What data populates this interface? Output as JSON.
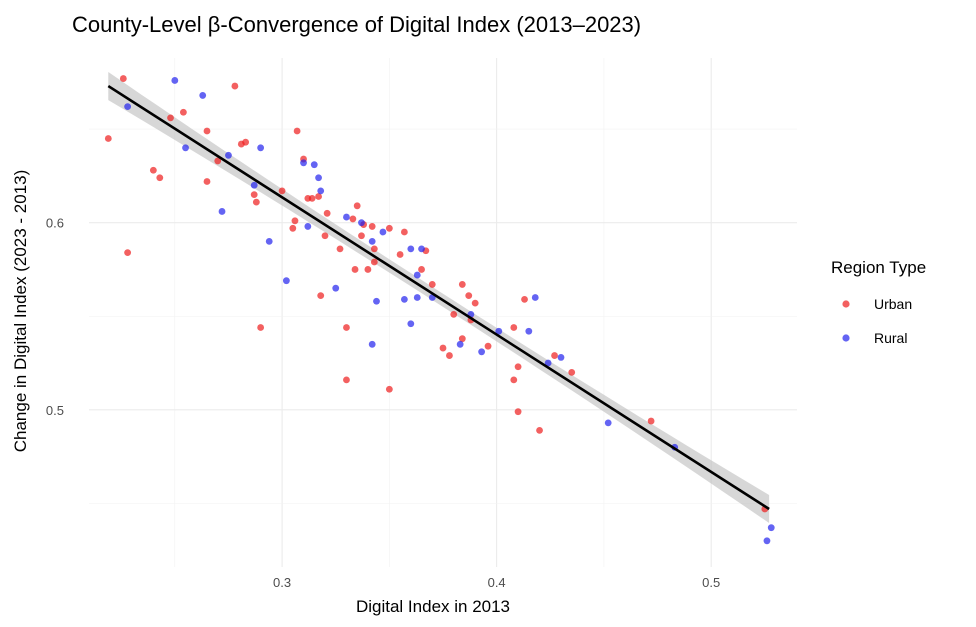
{
  "colors": {
    "urban": "#ee1c1c",
    "rural": "#2222ee",
    "fit_line": "#000000",
    "ci_band": "#bdbdbd",
    "grid": "#ebebeb"
  },
  "chart_data": {
    "type": "scatter",
    "title": "County-Level β-Convergence of Digital Index (2013–2023)",
    "xlabel": "Digital Index in 2013",
    "ylabel": "Change in Digital Index (2023 - 2013)",
    "xlim": [
      0.21,
      0.54
    ],
    "ylim": [
      0.416,
      0.688
    ],
    "xticks": [
      0.3,
      0.4,
      0.5
    ],
    "yticks": [
      0.5,
      0.6
    ],
    "xtick_labels": [
      "0.3",
      "0.4",
      "0.5"
    ],
    "ytick_labels": [
      "0.5",
      "0.6"
    ],
    "grid": true,
    "legend": {
      "title": "Region Type",
      "position": "right",
      "entries": [
        "Urban",
        "Rural"
      ]
    },
    "fit": {
      "type": "linear",
      "x": [
        0.219,
        0.527
      ],
      "y": [
        0.673,
        0.447
      ],
      "ci_half_width": [
        0.0075,
        0.0035,
        0.0075
      ]
    },
    "series": [
      {
        "name": "Urban",
        "color": "#ee1c1c",
        "points": [
          [
            0.219,
            0.645
          ],
          [
            0.226,
            0.677
          ],
          [
            0.228,
            0.584
          ],
          [
            0.24,
            0.628
          ],
          [
            0.243,
            0.624
          ],
          [
            0.248,
            0.656
          ],
          [
            0.254,
            0.659
          ],
          [
            0.265,
            0.622
          ],
          [
            0.265,
            0.649
          ],
          [
            0.27,
            0.633
          ],
          [
            0.278,
            0.673
          ],
          [
            0.281,
            0.642
          ],
          [
            0.283,
            0.643
          ],
          [
            0.287,
            0.615
          ],
          [
            0.288,
            0.611
          ],
          [
            0.29,
            0.544
          ],
          [
            0.3,
            0.617
          ],
          [
            0.305,
            0.597
          ],
          [
            0.306,
            0.601
          ],
          [
            0.307,
            0.649
          ],
          [
            0.31,
            0.634
          ],
          [
            0.312,
            0.613
          ],
          [
            0.314,
            0.613
          ],
          [
            0.317,
            0.614
          ],
          [
            0.318,
            0.561
          ],
          [
            0.32,
            0.593
          ],
          [
            0.321,
            0.605
          ],
          [
            0.327,
            0.586
          ],
          [
            0.33,
            0.544
          ],
          [
            0.33,
            0.516
          ],
          [
            0.333,
            0.602
          ],
          [
            0.334,
            0.575
          ],
          [
            0.335,
            0.609
          ],
          [
            0.337,
            0.593
          ],
          [
            0.338,
            0.599
          ],
          [
            0.34,
            0.575
          ],
          [
            0.342,
            0.598
          ],
          [
            0.343,
            0.586
          ],
          [
            0.343,
            0.579
          ],
          [
            0.35,
            0.511
          ],
          [
            0.35,
            0.597
          ],
          [
            0.355,
            0.583
          ],
          [
            0.357,
            0.595
          ],
          [
            0.365,
            0.575
          ],
          [
            0.367,
            0.585
          ],
          [
            0.37,
            0.567
          ],
          [
            0.375,
            0.533
          ],
          [
            0.378,
            0.529
          ],
          [
            0.38,
            0.551
          ],
          [
            0.384,
            0.538
          ],
          [
            0.384,
            0.567
          ],
          [
            0.387,
            0.561
          ],
          [
            0.388,
            0.548
          ],
          [
            0.39,
            0.557
          ],
          [
            0.396,
            0.534
          ],
          [
            0.408,
            0.516
          ],
          [
            0.408,
            0.544
          ],
          [
            0.41,
            0.523
          ],
          [
            0.41,
            0.499
          ],
          [
            0.413,
            0.559
          ],
          [
            0.42,
            0.489
          ],
          [
            0.427,
            0.529
          ],
          [
            0.435,
            0.52
          ],
          [
            0.472,
            0.494
          ],
          [
            0.525,
            0.447
          ]
        ]
      },
      {
        "name": "Rural",
        "color": "#2222ee",
        "points": [
          [
            0.228,
            0.662
          ],
          [
            0.25,
            0.676
          ],
          [
            0.255,
            0.64
          ],
          [
            0.263,
            0.668
          ],
          [
            0.272,
            0.606
          ],
          [
            0.275,
            0.636
          ],
          [
            0.287,
            0.62
          ],
          [
            0.29,
            0.64
          ],
          [
            0.294,
            0.59
          ],
          [
            0.302,
            0.569
          ],
          [
            0.31,
            0.632
          ],
          [
            0.312,
            0.598
          ],
          [
            0.315,
            0.631
          ],
          [
            0.317,
            0.624
          ],
          [
            0.318,
            0.617
          ],
          [
            0.325,
            0.565
          ],
          [
            0.33,
            0.603
          ],
          [
            0.337,
            0.6
          ],
          [
            0.342,
            0.59
          ],
          [
            0.342,
            0.535
          ],
          [
            0.344,
            0.558
          ],
          [
            0.347,
            0.595
          ],
          [
            0.357,
            0.559
          ],
          [
            0.36,
            0.586
          ],
          [
            0.36,
            0.546
          ],
          [
            0.363,
            0.572
          ],
          [
            0.363,
            0.56
          ],
          [
            0.365,
            0.586
          ],
          [
            0.37,
            0.56
          ],
          [
            0.383,
            0.535
          ],
          [
            0.388,
            0.551
          ],
          [
            0.393,
            0.531
          ],
          [
            0.401,
            0.542
          ],
          [
            0.415,
            0.542
          ],
          [
            0.418,
            0.56
          ],
          [
            0.424,
            0.525
          ],
          [
            0.43,
            0.528
          ],
          [
            0.452,
            0.493
          ],
          [
            0.483,
            0.48
          ],
          [
            0.526,
            0.43
          ],
          [
            0.528,
            0.437
          ]
        ]
      }
    ]
  }
}
